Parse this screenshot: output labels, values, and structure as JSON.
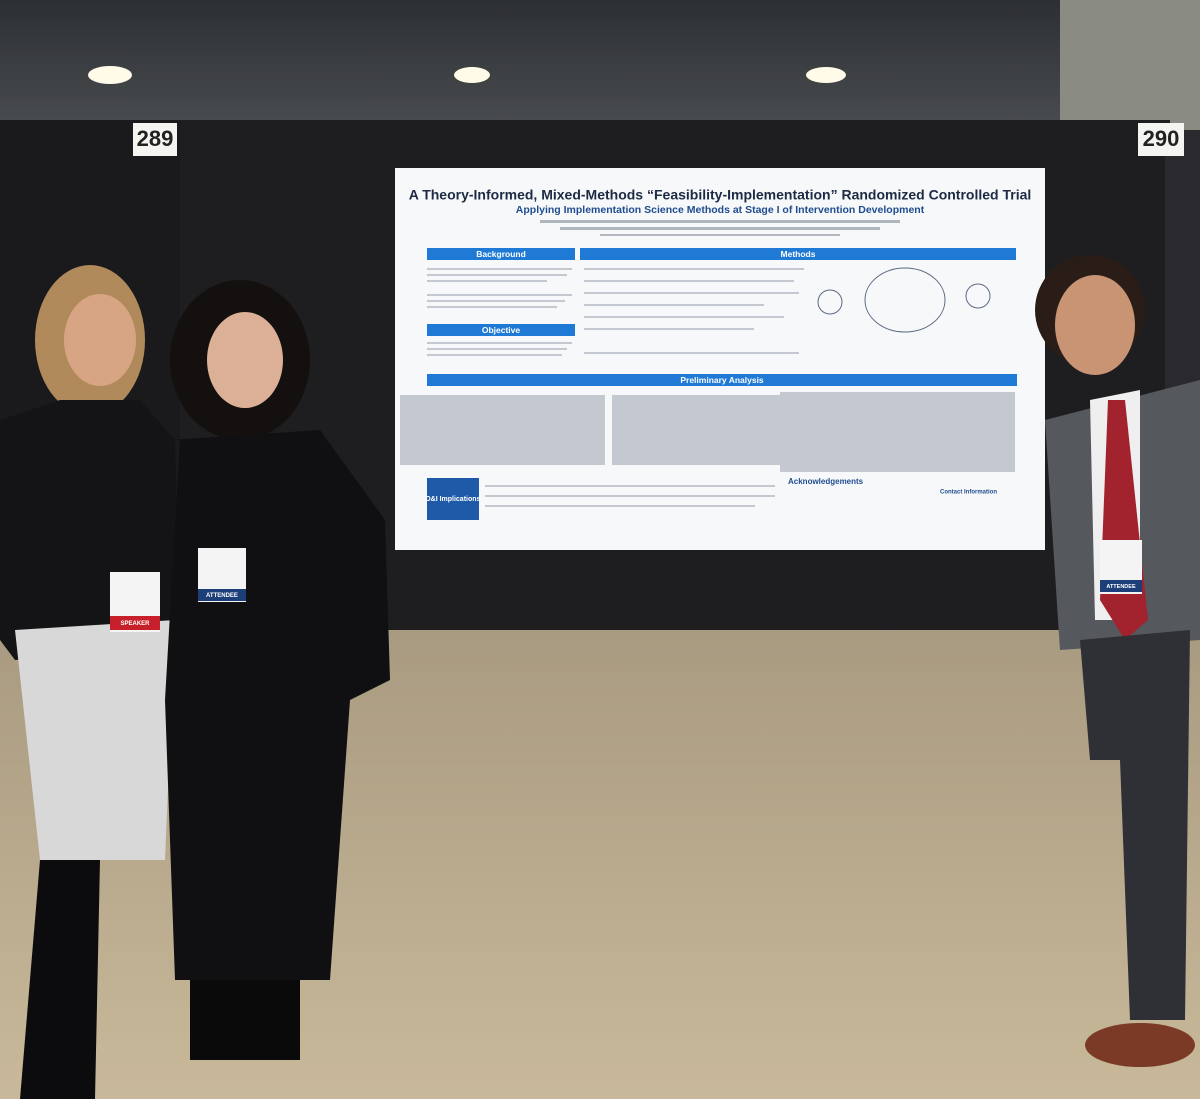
{
  "booth_numbers": [
    "289",
    "290"
  ],
  "poster": {
    "title": "A Theory-Informed, Mixed-Methods “Feasibility-Implementation” Randomized Controlled Trial",
    "subtitle": "Applying Implementation Science Methods at Stage I of Intervention Development",
    "sections": [
      "Background",
      "Objective",
      "Methods",
      "Preliminary Analysis",
      "D&I Implications"
    ],
    "acknowledgements": "Acknowledgements",
    "contact": "Contact Information"
  },
  "badges": [
    "SPEAKER",
    "ATTENDEE",
    "ATTENDEE"
  ]
}
